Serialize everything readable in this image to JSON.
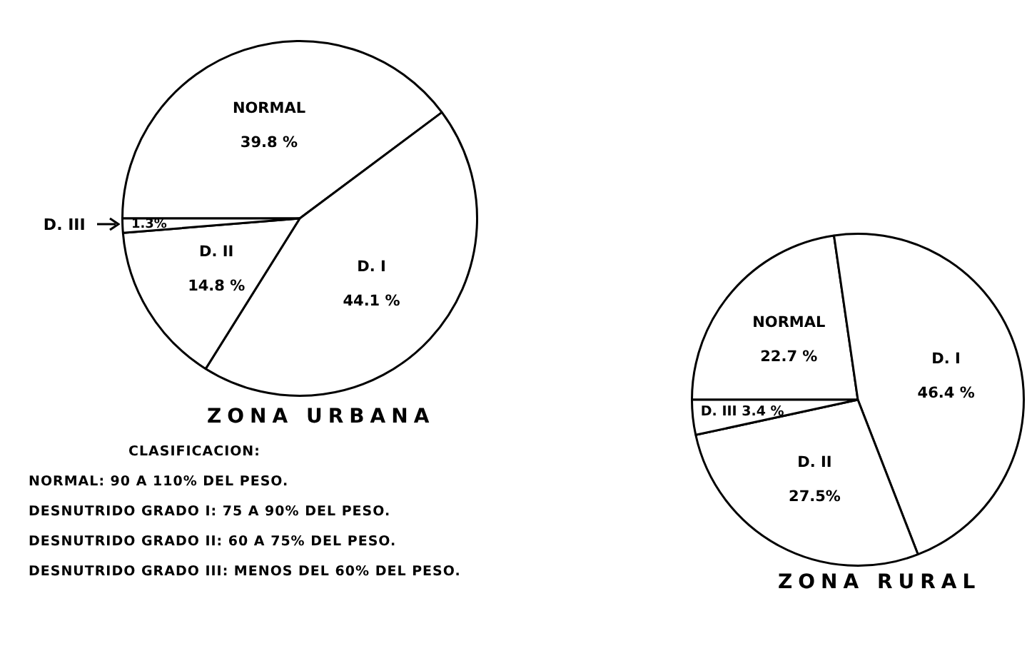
{
  "chart_data": [
    {
      "type": "pie",
      "title": "ZONA URBANA",
      "categories": [
        "NORMAL",
        "D. I",
        "D. II",
        "D. III"
      ],
      "values": [
        39.8,
        44.1,
        14.8,
        1.3
      ],
      "value_labels": [
        "39.8 %",
        "44.1 %",
        "14.8 %",
        "1.3%"
      ],
      "colors": [
        "#ffffff",
        "#ffffff",
        "#ffffff",
        "#ffffff"
      ],
      "annotations": [
        "CLASIFICACION:",
        "NORMAL: 90 A 110% DEL PESO.",
        "DESNUTRIDO GRADO I: 75 A 90% DEL PESO.",
        "DESNUTRIDO GRADO II: 60 A 75% DEL PESO.",
        "DESNUTRIDO GRADO III: MENOS DEL 60% DEL PESO."
      ]
    },
    {
      "type": "pie",
      "title": "ZONA RURAL",
      "categories": [
        "NORMAL",
        "D. I",
        "D. II",
        "D. III"
      ],
      "values": [
        22.7,
        46.4,
        27.5,
        3.4
      ],
      "value_labels": [
        "22.7 %",
        "46.4 %",
        "27.5%",
        "3.4 %"
      ],
      "colors": [
        "#ffffff",
        "#ffffff",
        "#ffffff",
        "#ffffff"
      ]
    }
  ]
}
